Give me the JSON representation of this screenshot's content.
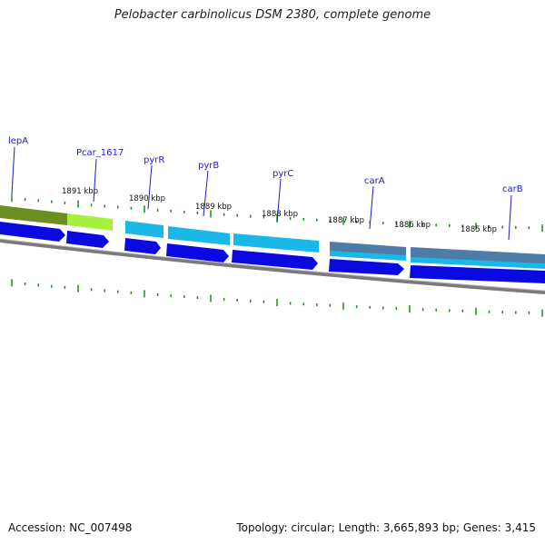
{
  "title": "Pelobacter carbinolicus DSM 2380, complete genome",
  "footer": {
    "accession": "Accession: NC_007498",
    "summary": "Topology: circular; Length: 3,665,893 bp; Genes: 3,415"
  },
  "colors": {
    "cds_forward": "#0a0ae0",
    "gene_light_blue": "#19b8e8",
    "gene_steel": "#4f7ca6",
    "gene_olive": "#6b8e23",
    "gene_lime": "#a6f040",
    "backbone": "#888888",
    "ticks": "#1a8a1a",
    "label": "#1c1cc8"
  },
  "kbp_labels": [
    "1891 kbp",
    "1890 kbp",
    "1889 kbp",
    "1888 kbp",
    "1887 kbp",
    "1886 kbp",
    "1885 kbp"
  ],
  "genes": [
    {
      "name": "lepA"
    },
    {
      "name": "Pcar_1617"
    },
    {
      "name": "pyrR"
    },
    {
      "name": "pyrB"
    },
    {
      "name": "pyrC"
    },
    {
      "name": "carA"
    },
    {
      "name": "carB"
    }
  ]
}
